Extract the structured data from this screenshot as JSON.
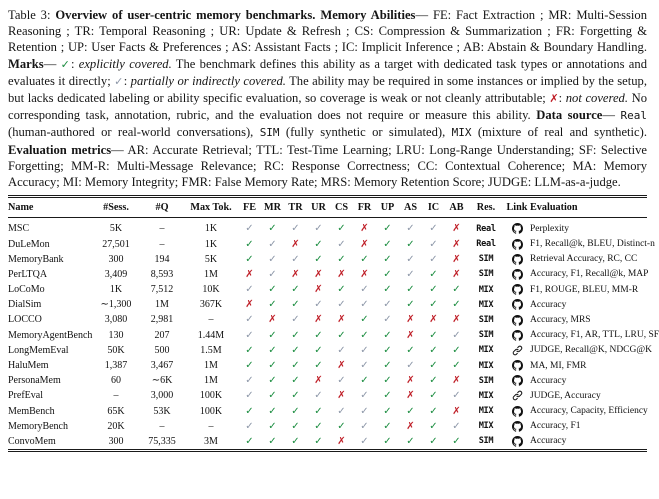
{
  "colors": {
    "explicit_check": "#1a8c3f",
    "partial_check": "#8d97a8",
    "not_covered_x": "#bf1d26"
  },
  "caption": {
    "segments": [
      {
        "role": "plain",
        "text": "Table 3: "
      },
      {
        "role": "bold",
        "text": "Overview of user-centric memory benchmarks. Memory Abilities"
      },
      {
        "role": "plain",
        "text": "— FE: Fact Extraction ; MR: Multi-Session Reasoning ; TR: Temporal Reasoning ; UR: Update & Refresh ; CS: Compression & Summarization ; FR: Forgetting & Retention ; UP: User Facts & Preferences ; AS: Assistant Facts ; IC: Implicit Inference ; AB: Abstain & Boundary Handling. "
      },
      {
        "role": "bold",
        "text": "Marks"
      },
      {
        "role": "plain",
        "text": "— "
      },
      {
        "role": "mark-explicit",
        "text": "✓"
      },
      {
        "role": "plain",
        "text": ": "
      },
      {
        "role": "italic",
        "text": "explicitly covered."
      },
      {
        "role": "plain",
        "text": " The benchmark defines this ability as a target with dedicated task types or annotations and evaluates it directly; "
      },
      {
        "role": "mark-partial",
        "text": "✓"
      },
      {
        "role": "plain",
        "text": ": "
      },
      {
        "role": "italic",
        "text": "partially or indirectly covered."
      },
      {
        "role": "plain",
        "text": " The ability may be required in some instances or implied by the setup, but lacks dedicated labeling or ability specific evaluation, so coverage is weak or not cleanly attributable; "
      },
      {
        "role": "mark-not",
        "text": "✗"
      },
      {
        "role": "plain",
        "text": ": "
      },
      {
        "role": "italic",
        "text": "not covered."
      },
      {
        "role": "plain",
        "text": " No corresponding task, annotation, rubric, and the evaluation does not require or measure this ability. "
      },
      {
        "role": "bold",
        "text": "Data source"
      },
      {
        "role": "plain",
        "text": "— "
      },
      {
        "role": "mono",
        "text": "Real"
      },
      {
        "role": "plain",
        "text": " (human-authored or real-world conversations), "
      },
      {
        "role": "mono",
        "text": "SIM"
      },
      {
        "role": "plain",
        "text": " (fully synthetic or simulated), "
      },
      {
        "role": "mono",
        "text": "MIX"
      },
      {
        "role": "plain",
        "text": " (mixture of real and synthetic). "
      },
      {
        "role": "bold",
        "text": "Evaluation metrics"
      },
      {
        "role": "plain",
        "text": "— AR: Accurate Retrieval; TTL: Test-Time Learning; LRU: Long-Range Understanding; SF: Selective Forgetting; MM-R: Multi-Message Relevance; RC: Response Correctness; CC: Contextual Coherence; MA: Memory Accuracy; MI: Memory Integrity; FMR: False Memory Rate; MRS: Memory Retention Score; JUDGE: LLM-as-a-judge."
      }
    ]
  },
  "table": {
    "columns": [
      "Name",
      "#Sess.",
      "#Q",
      "Max Tok.",
      "FE",
      "MR",
      "TR",
      "UR",
      "CS",
      "FR",
      "UP",
      "AS",
      "IC",
      "AB",
      "Res.",
      "Link",
      "Evaluation"
    ],
    "marks_legend": {
      "G": "✓",
      "P": "✓",
      "X": "✗"
    },
    "rows": [
      {
        "name": "MSC",
        "sessions": "5K",
        "questions": "–",
        "max_tokens": "1K",
        "abilities": [
          "P",
          "G",
          "P",
          "P",
          "G",
          "X",
          "G",
          "P",
          "P",
          "X"
        ],
        "res": "Real",
        "link": "github",
        "evaluation": "Perplexity"
      },
      {
        "name": "DuLeMon",
        "sessions": "27,501",
        "questions": "–",
        "max_tokens": "1K",
        "abilities": [
          "G",
          "P",
          "X",
          "G",
          "P",
          "X",
          "G",
          "G",
          "P",
          "X"
        ],
        "res": "Real",
        "link": "github",
        "evaluation": "F1, Recall@k, BLEU, Distinct-n"
      },
      {
        "name": "MemoryBank",
        "sessions": "300",
        "questions": "194",
        "max_tokens": "5K",
        "abilities": [
          "G",
          "P",
          "P",
          "G",
          "G",
          "G",
          "G",
          "P",
          "P",
          "X"
        ],
        "res": "SIM",
        "link": "github",
        "evaluation": "Retrieval Accuracy, RC, CC"
      },
      {
        "name": "PerLTQA",
        "sessions": "3,409",
        "questions": "8,593",
        "max_tokens": "1M",
        "abilities": [
          "X",
          "P",
          "X",
          "X",
          "X",
          "X",
          "G",
          "P",
          "G",
          "X"
        ],
        "res": "SIM",
        "link": "github",
        "evaluation": "Accuracy, F1, Recall@k, MAP"
      },
      {
        "name": "LoCoMo",
        "sessions": "1K",
        "questions": "7,512",
        "max_tokens": "10K",
        "abilities": [
          "P",
          "G",
          "G",
          "X",
          "G",
          "P",
          "G",
          "G",
          "G",
          "G"
        ],
        "res": "MIX",
        "link": "github",
        "evaluation": "F1, ROUGE, BLEU, MM-R"
      },
      {
        "name": "DialSim",
        "sessions": "∼1,300",
        "questions": "1M",
        "max_tokens": "367K",
        "abilities": [
          "X",
          "G",
          "G",
          "P",
          "P",
          "P",
          "P",
          "G",
          "G",
          "G"
        ],
        "res": "MIX",
        "link": "github",
        "evaluation": "Accuracy"
      },
      {
        "name": "LOCCO",
        "sessions": "3,080",
        "questions": "2,981",
        "max_tokens": "–",
        "abilities": [
          "P",
          "X",
          "P",
          "X",
          "X",
          "G",
          "P",
          "X",
          "X",
          "X"
        ],
        "res": "SIM",
        "link": "github",
        "evaluation": "Accuracy, MRS"
      },
      {
        "name": "MemoryAgentBench",
        "sessions": "130",
        "questions": "207",
        "max_tokens": "1.44M",
        "abilities": [
          "P",
          "G",
          "G",
          "G",
          "G",
          "G",
          "G",
          "X",
          "G",
          "P"
        ],
        "res": "SIM",
        "link": "github",
        "evaluation": "Accuracy, F1, AR, TTL, LRU, SF"
      },
      {
        "name": "LongMemEval",
        "sessions": "50K",
        "questions": "500",
        "max_tokens": "1.5M",
        "abilities": [
          "G",
          "G",
          "G",
          "G",
          "P",
          "P",
          "G",
          "G",
          "G",
          "G"
        ],
        "res": "MIX",
        "link": "link",
        "evaluation": "JUDGE, Recall@K, NDCG@K"
      },
      {
        "name": "HaluMem",
        "sessions": "1,387",
        "questions": "3,467",
        "max_tokens": "1M",
        "abilities": [
          "G",
          "G",
          "G",
          "G",
          "X",
          "P",
          "G",
          "P",
          "G",
          "G"
        ],
        "res": "MIX",
        "link": "github",
        "evaluation": "MA, MI, FMR"
      },
      {
        "name": "PersonaMem",
        "sessions": "60",
        "questions": "∼6K",
        "max_tokens": "1M",
        "abilities": [
          "P",
          "G",
          "G",
          "X",
          "P",
          "G",
          "G",
          "X",
          "G",
          "X"
        ],
        "res": "SIM",
        "link": "github",
        "evaluation": "Accuracy"
      },
      {
        "name": "PrefEval",
        "sessions": "–",
        "questions": "3,000",
        "max_tokens": "100K",
        "abilities": [
          "P",
          "G",
          "G",
          "P",
          "X",
          "P",
          "G",
          "X",
          "G",
          "P"
        ],
        "res": "MIX",
        "link": "link",
        "evaluation": "JUDGE, Accuracy"
      },
      {
        "name": "MemBench",
        "sessions": "65K",
        "questions": "53K",
        "max_tokens": "100K",
        "abilities": [
          "G",
          "G",
          "G",
          "G",
          "P",
          "P",
          "G",
          "G",
          "G",
          "X"
        ],
        "res": "MIX",
        "link": "github",
        "evaluation": "Accuracy, Capacity, Efficiency"
      },
      {
        "name": "MemoryBench",
        "sessions": "20K",
        "questions": "–",
        "max_tokens": "–",
        "abilities": [
          "P",
          "G",
          "G",
          "G",
          "G",
          "P",
          "G",
          "X",
          "G",
          "P"
        ],
        "res": "MIX",
        "link": "github",
        "evaluation": "Accuracy, F1"
      },
      {
        "name": "ConvoMem",
        "sessions": "300",
        "questions": "75,335",
        "max_tokens": "3M",
        "abilities": [
          "G",
          "G",
          "G",
          "G",
          "X",
          "P",
          "G",
          "G",
          "G",
          "G"
        ],
        "res": "SIM",
        "link": "github",
        "evaluation": "Accuracy"
      }
    ]
  }
}
